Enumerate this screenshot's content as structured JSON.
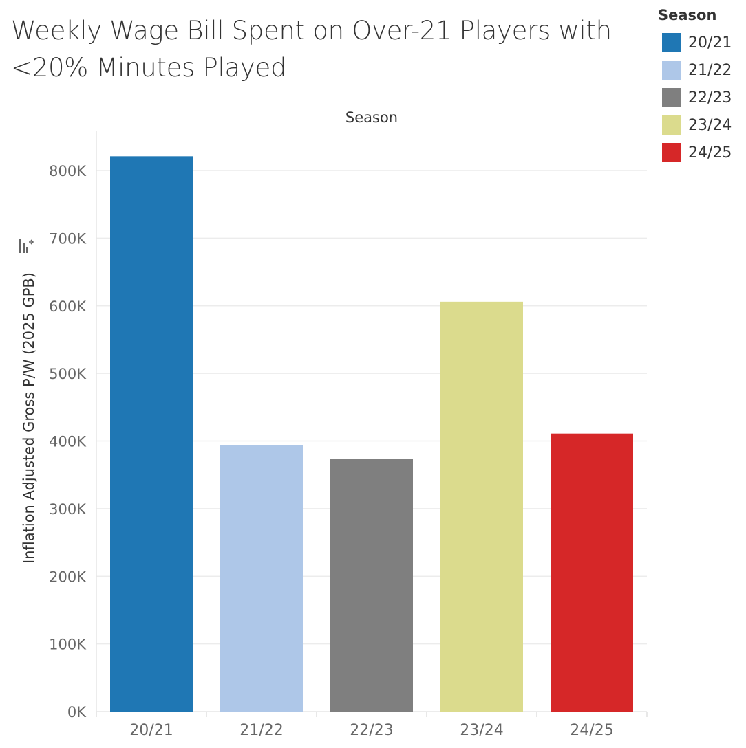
{
  "chart_data": {
    "type": "bar",
    "title": "Weekly Wage Bill Spent on Over-21 Players with <20% Minutes Played",
    "column_header": "Season",
    "xlabel": "",
    "ylabel": "Inflation Adjusted Gross P/W (2025 GPB)",
    "categories": [
      "20/21",
      "21/22",
      "22/23",
      "23/24",
      "24/25"
    ],
    "values": [
      821000,
      394000,
      374000,
      606000,
      411000
    ],
    "colors": [
      "#1f77b4",
      "#aec7e8",
      "#7f7f7f",
      "#dbdb8d",
      "#d62728"
    ],
    "ylim": [
      0,
      800000
    ],
    "yticks": [
      0,
      100000,
      200000,
      300000,
      400000,
      500000,
      600000,
      700000,
      800000
    ],
    "ytick_labels": [
      "0K",
      "100K",
      "200K",
      "300K",
      "400K",
      "500K",
      "600K",
      "700K",
      "800K"
    ],
    "grid": true,
    "legend": {
      "title": "Season",
      "placement": "top-right",
      "items": [
        "20/21",
        "21/22",
        "22/23",
        "23/24",
        "24/25"
      ]
    },
    "axis_icon": "sort-icon"
  }
}
